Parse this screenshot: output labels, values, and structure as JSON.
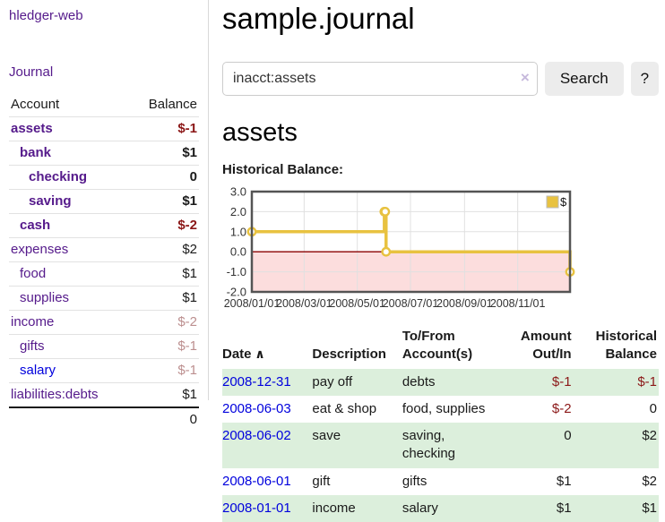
{
  "app": {
    "brand": "hledger-web",
    "nav": {
      "journal": "Journal"
    }
  },
  "colors": {
    "link_purple": "#551a8b",
    "link_blue": "#0000dd",
    "negative_strong": "#8b1717",
    "negative_soft": "#bc8f8f",
    "row_stripe_green": "#dcefdc",
    "chart_line_gold": "#e8c240",
    "chart_negative_region": "#fcdddd",
    "chart_zero_line": "#8b0000"
  },
  "sidebar": {
    "columns": {
      "account": "Account",
      "balance": "Balance"
    },
    "accounts": [
      {
        "name": "assets",
        "balance": "$-1",
        "indent": 0,
        "bold": true,
        "balance_style": "neg-strong",
        "link_style": "purple"
      },
      {
        "name": "bank",
        "balance": "$1",
        "indent": 1,
        "bold": true,
        "balance_style": "pos",
        "link_style": "purple"
      },
      {
        "name": "checking",
        "balance": "0",
        "indent": 2,
        "bold": true,
        "balance_style": "pos",
        "link_style": "purple"
      },
      {
        "name": "saving",
        "balance": "$1",
        "indent": 2,
        "bold": true,
        "balance_style": "pos",
        "link_style": "purple"
      },
      {
        "name": "cash",
        "balance": "$-2",
        "indent": 1,
        "bold": true,
        "balance_style": "neg-strong",
        "link_style": "purple"
      },
      {
        "name": "expenses",
        "balance": "$2",
        "indent": 0,
        "bold": false,
        "balance_style": "pos",
        "link_style": "purple"
      },
      {
        "name": "food",
        "balance": "$1",
        "indent": 1,
        "bold": false,
        "balance_style": "pos",
        "link_style": "purple"
      },
      {
        "name": "supplies",
        "balance": "$1",
        "indent": 1,
        "bold": false,
        "balance_style": "pos",
        "link_style": "purple"
      },
      {
        "name": "income",
        "balance": "$-2",
        "indent": 0,
        "bold": false,
        "balance_style": "neg-soft",
        "link_style": "purple"
      },
      {
        "name": "gifts",
        "balance": "$-1",
        "indent": 1,
        "bold": false,
        "balance_style": "neg-soft",
        "link_style": "purple"
      },
      {
        "name": "salary",
        "balance": "$-1",
        "indent": 1,
        "bold": false,
        "balance_style": "neg-soft",
        "link_style": "blue"
      },
      {
        "name": "liabilities:debts",
        "balance": "$1",
        "indent": 0,
        "bold": false,
        "balance_style": "pos",
        "link_style": "purple"
      }
    ],
    "total": "0"
  },
  "header": {
    "title": "sample.journal"
  },
  "search": {
    "value": "inacct:assets",
    "clear_icon": "×",
    "button_label": "Search",
    "help_label": "?"
  },
  "account_page": {
    "title": "assets",
    "chart_label": "Historical Balance:"
  },
  "chart_data": {
    "type": "line",
    "title": "Historical Balance:",
    "step": true,
    "xlim": [
      "2008-01-01",
      "2008-12-31"
    ],
    "ylim": [
      -2,
      3
    ],
    "y_ticks": [
      "3.0",
      "2.0",
      "1.0",
      "0.0",
      "-1.0",
      "-2.0"
    ],
    "x_ticks": [
      "2008/01/01",
      "2008/03/01",
      "2008/05/01",
      "2008/07/01",
      "2008/09/01",
      "2008/11/01"
    ],
    "grid": true,
    "legend": {
      "label": "$",
      "position": "top-right"
    },
    "series": [
      {
        "name": "$",
        "points": [
          {
            "date": "2008-01-01",
            "value": 1
          },
          {
            "date": "2008-06-01",
            "value": 2
          },
          {
            "date": "2008-06-02",
            "value": 2
          },
          {
            "date": "2008-06-03",
            "value": 0
          },
          {
            "date": "2008-12-31",
            "value": -1
          }
        ]
      }
    ]
  },
  "register": {
    "sort_icon": "∧",
    "columns": [
      "Date",
      "Description",
      "To/From Account(s)",
      "Amount Out/In",
      "Historical Balance"
    ],
    "rows": [
      {
        "date": "2008-12-31",
        "description": "pay off",
        "accounts": "debts",
        "amount": "$-1",
        "amount_negative": true,
        "balance": "$-1",
        "balance_negative": true
      },
      {
        "date": "2008-06-03",
        "description": "eat & shop",
        "accounts": "food, supplies",
        "amount": "$-2",
        "amount_negative": true,
        "balance": "0",
        "balance_negative": false
      },
      {
        "date": "2008-06-02",
        "description": "save",
        "accounts": "saving, checking",
        "amount": "0",
        "amount_negative": false,
        "balance": "$2",
        "balance_negative": false
      },
      {
        "date": "2008-06-01",
        "description": "gift",
        "accounts": "gifts",
        "amount": "$1",
        "amount_negative": false,
        "balance": "$2",
        "balance_negative": false
      },
      {
        "date": "2008-01-01",
        "description": "income",
        "accounts": "salary",
        "amount": "$1",
        "amount_negative": false,
        "balance": "$1",
        "balance_negative": false
      }
    ]
  }
}
